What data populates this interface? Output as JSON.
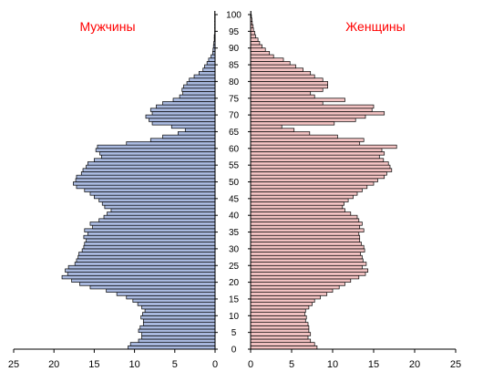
{
  "chart_data": {
    "type": "bar",
    "subtype": "population-pyramid",
    "titles": {
      "left": "Мужчины",
      "right": "Женщины"
    },
    "left_series": {
      "name": "Мужчины",
      "color": "#a9b9df"
    },
    "right_series": {
      "name": "Женщины",
      "color": "#f2c2c2"
    },
    "title_color": "#ff0000",
    "bar_stroke": "#000000",
    "ages": [
      0,
      1,
      2,
      3,
      4,
      5,
      6,
      7,
      8,
      9,
      10,
      11,
      12,
      13,
      14,
      15,
      16,
      17,
      18,
      19,
      20,
      21,
      22,
      23,
      24,
      25,
      26,
      27,
      28,
      29,
      30,
      31,
      32,
      33,
      34,
      35,
      36,
      37,
      38,
      39,
      40,
      41,
      42,
      43,
      44,
      45,
      46,
      47,
      48,
      49,
      50,
      51,
      52,
      53,
      54,
      55,
      56,
      57,
      58,
      59,
      60,
      61,
      62,
      63,
      64,
      65,
      66,
      67,
      68,
      69,
      70,
      71,
      72,
      73,
      74,
      75,
      76,
      77,
      78,
      79,
      80,
      81,
      82,
      83,
      84,
      85,
      86,
      87,
      88,
      89,
      90,
      91,
      92,
      93,
      94,
      95,
      96,
      97,
      98,
      99,
      100
    ],
    "age_ticks": [
      "0",
      "5",
      "10",
      "15",
      "20",
      "25",
      "30",
      "35",
      "40",
      "45",
      "50",
      "55",
      "60",
      "65",
      "70",
      "75",
      "80",
      "85",
      "90",
      "95",
      "100"
    ],
    "male": [
      10.8,
      10.5,
      9.5,
      9.1,
      9.1,
      9.5,
      9.3,
      8.9,
      8.9,
      9.2,
      9.0,
      8.7,
      9.1,
      9.6,
      10.2,
      11.0,
      12.2,
      13.5,
      15.5,
      16.8,
      17.8,
      19.0,
      18.3,
      18.6,
      18.2,
      17.4,
      17.2,
      17.0,
      16.9,
      16.5,
      16.3,
      16.2,
      16.0,
      16.3,
      15.8,
      16.2,
      15.2,
      15.5,
      14.4,
      13.8,
      13.4,
      12.9,
      13.7,
      14.0,
      14.4,
      15.0,
      15.5,
      16.2,
      17.2,
      17.6,
      17.3,
      17.2,
      16.6,
      16.4,
      16.0,
      15.8,
      15.0,
      14.1,
      14.3,
      14.8,
      14.6,
      11.0,
      8.0,
      6.5,
      4.6,
      3.7,
      5.4,
      7.8,
      8.2,
      8.6,
      7.8,
      8.0,
      7.3,
      6.5,
      5.2,
      4.4,
      4.0,
      4.1,
      3.9,
      3.5,
      3.2,
      2.6,
      2.0,
      1.5,
      1.3,
      1.0,
      0.8,
      0.5,
      0.3,
      0.25,
      0.2,
      0.15,
      0.1,
      0.1,
      0.05,
      0.05,
      0.05,
      0.05,
      0.05,
      0.05,
      0.05
    ],
    "female": [
      8.1,
      7.8,
      7.3,
      7.0,
      7.3,
      7.1,
      7.1,
      7.0,
      6.7,
      6.8,
      6.6,
      6.7,
      7.1,
      7.5,
      7.8,
      8.5,
      9.3,
      10.0,
      10.8,
      11.5,
      12.2,
      13.2,
      14.0,
      14.3,
      13.6,
      14.1,
      13.7,
      13.6,
      13.4,
      13.9,
      13.8,
      13.5,
      13.3,
      13.3,
      13.2,
      13.8,
      13.3,
      13.6,
      13.2,
      13.0,
      12.2,
      11.5,
      11.2,
      11.4,
      11.9,
      12.5,
      13.0,
      13.6,
      14.2,
      15.0,
      15.5,
      16.3,
      16.6,
      17.2,
      17.0,
      16.8,
      16.2,
      15.7,
      16.3,
      16.0,
      17.8,
      13.3,
      13.8,
      10.6,
      7.2,
      5.3,
      3.8,
      10.2,
      12.8,
      14.0,
      16.3,
      14.8,
      15.0,
      8.8,
      11.5,
      7.8,
      7.3,
      8.8,
      9.4,
      9.4,
      8.8,
      7.8,
      7.3,
      6.4,
      5.5,
      4.8,
      4.0,
      2.8,
      2.3,
      1.8,
      1.4,
      1.1,
      0.9,
      0.6,
      0.5,
      0.35,
      0.3,
      0.2,
      0.15,
      0.1,
      0.05
    ],
    "x_ticks_left": [
      "25",
      "20",
      "15",
      "10",
      "5",
      "0"
    ],
    "x_ticks_right": [
      "0",
      "5",
      "10",
      "15",
      "20",
      "25"
    ],
    "xlim": [
      0,
      25
    ],
    "ylim": [
      0,
      100
    ]
  }
}
